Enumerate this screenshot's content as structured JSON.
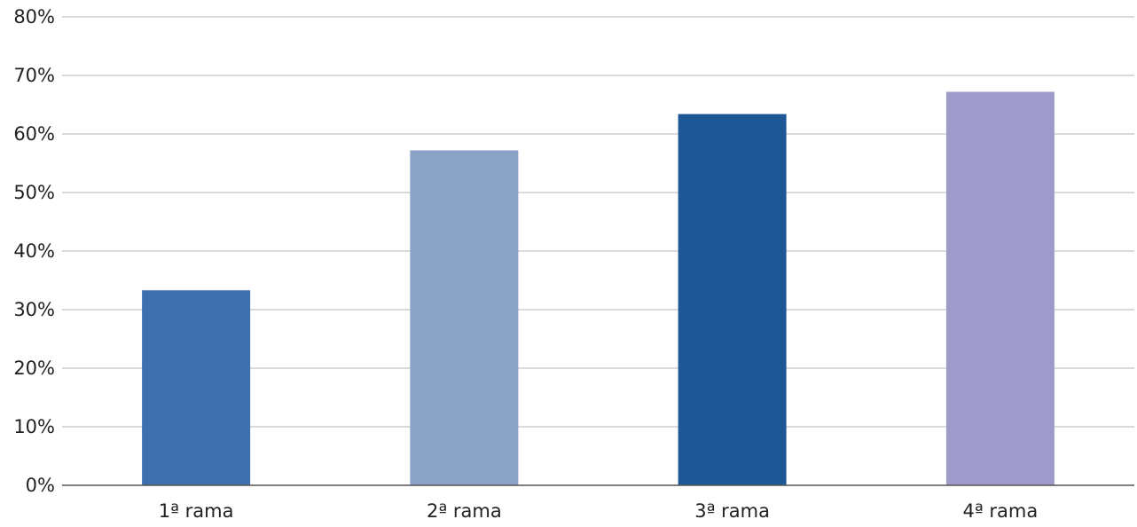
{
  "chart_data": {
    "type": "bar",
    "title": "",
    "xlabel": "",
    "ylabel": "",
    "categories": [
      "1ª rama",
      "2ª rama",
      "3ª rama",
      "4ª rama"
    ],
    "values": [
      33.3,
      57.2,
      63.4,
      67.2
    ],
    "colors": [
      "#3d6fae",
      "#8aa2c6",
      "#1d5795",
      "#9e9bca"
    ],
    "ylim": [
      0,
      80
    ],
    "yticks": [
      0,
      10,
      20,
      30,
      40,
      50,
      60,
      70,
      80
    ],
    "ytick_labels": [
      "0%",
      "10%",
      "20%",
      "30%",
      "40%",
      "50%",
      "60%",
      "70%",
      "80%"
    ],
    "grid": true,
    "legend": "none",
    "gridline_color": "#b4b4b4",
    "axis_color": "#555555"
  }
}
